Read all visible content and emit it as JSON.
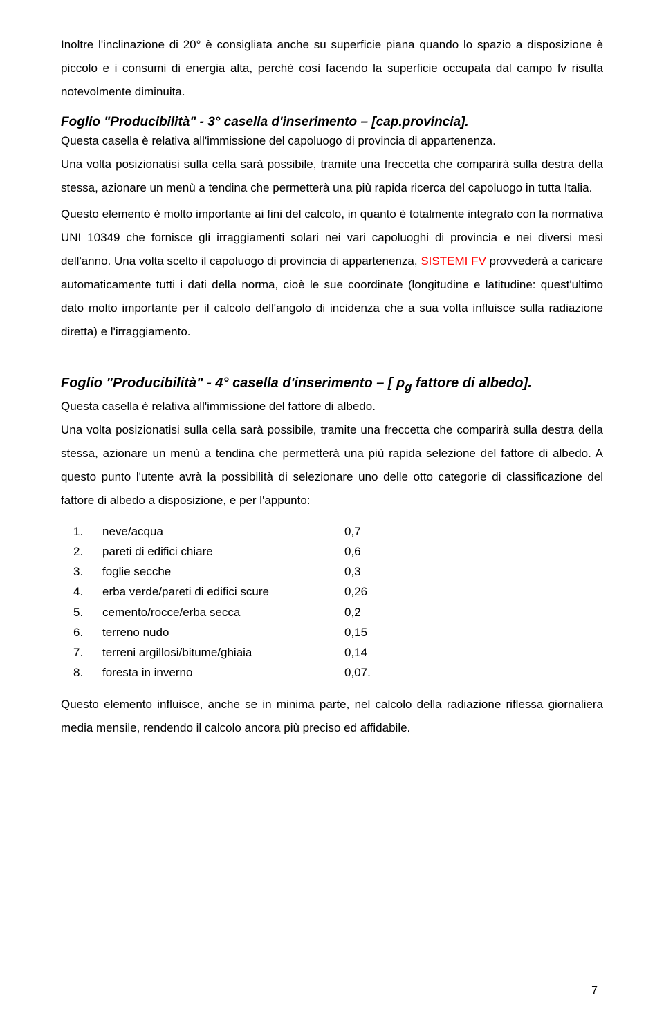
{
  "para1": "Inoltre l'inclinazione di 20° è consigliata anche su superficie piana quando lo spazio a disposizione è piccolo e i consumi di energia alta, perché così facendo la superficie occupata dal campo fv risulta notevolmente diminuita.",
  "heading3": "Foglio \"Producibilità\" - 3° casella d'inserimento – [cap.provincia].",
  "para2": "Questa casella è relativa all'immissione del capoluogo di provincia di appartenenza.",
  "para3": "Una volta posizionatisi sulla cella sarà possibile, tramite una freccetta che comparirà sulla destra della stessa, azionare un menù a tendina che permetterà una più rapida ricerca del capoluogo in tutta Italia.",
  "para4_pre": "Questo elemento è molto importante ai fini del calcolo, in quanto è totalmente integrato con la normativa UNI 10349 che fornisce gli irraggiamenti solari nei vari capoluoghi di provincia e nei diversi mesi dell'anno. Una volta scelto il capoluogo di provincia di appartenenza, ",
  "para4_red": "SISTEMI FV",
  "para4_post": " provvederà a caricare automaticamente tutti i dati della norma, cioè le sue coordinate (longitudine e latitudine: quest'ultimo dato molto importante per il calcolo dell'angolo di incidenza che a sua volta influisce  sulla radiazione diretta) e l'irraggiamento.",
  "heading4_line1": "Foglio \"Producibilità\" - 4° casella d'inserimento – [ ρ",
  "heading4_sub": "g",
  "heading4_line2": "  fattore di albedo].",
  "sub4": "Questa casella è relativa all'immissione del fattore di albedo.",
  "para5": "Una volta posizionatisi sulla cella sarà possibile, tramite una freccetta che comparirà sulla destra della stessa, azionare un menù a tendina che permetterà una più rapida selezione del fattore di albedo. A questo punto l'utente avrà la possibilità di selezionare uno delle otto categorie di classificazione del fattore di albedo a disposizione, e per l'appunto:",
  "albedo_list": [
    {
      "n": "1.",
      "label": "neve/acqua",
      "val": "0,7"
    },
    {
      "n": "2.",
      "label": "pareti di edifici chiare",
      "val": "0,6"
    },
    {
      "n": "3.",
      "label": "foglie secche",
      "val": "0,3"
    },
    {
      "n": "4.",
      "label": "erba verde/pareti di edifici scure",
      "val": "0,26"
    },
    {
      "n": "5.",
      "label": "cemento/rocce/erba secca",
      "val": "0,2"
    },
    {
      "n": "6.",
      "label": "terreno nudo",
      "val": "0,15"
    },
    {
      "n": "7.",
      "label": "terreni argillosi/bitume/ghiaia",
      "val": "0,14"
    },
    {
      "n": "8.",
      "label": "foresta in inverno",
      "val": "0,07."
    }
  ],
  "para6": "Questo elemento influisce, anche se in minima parte, nel calcolo della radiazione riflessa giornaliera media mensile, rendendo il calcolo ancora più preciso ed affidabile.",
  "page_number": "7"
}
